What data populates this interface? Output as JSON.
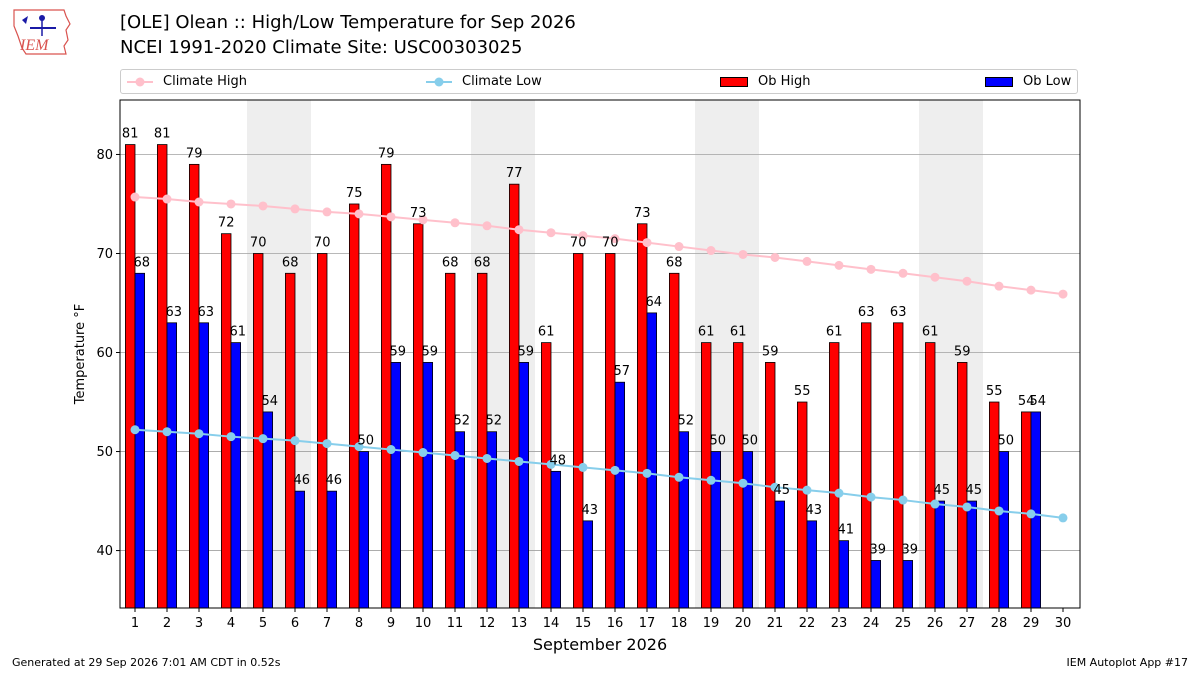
{
  "title_line1": "[OLE] Olean :: High/Low Temperature for Sep 2026",
  "title_line2": "NCEI 1991-2020 Climate Site: USC00303025",
  "logo_text": "IEM",
  "footer_left": "Generated at 29 Sep 2026 7:01 AM CDT in 0.52s",
  "footer_right": "IEM Autoplot App #17",
  "colors": {
    "ob_high": "#ff0000",
    "ob_low": "#0000ff",
    "climate_high": "#ffc0cb",
    "climate_low": "#87ceeb",
    "weekend_shade": "#eeeeee",
    "grid": "#a0a0a0"
  },
  "chart_data": {
    "type": "bar",
    "xlabel": "September 2026",
    "ylabel": "Temperature °F",
    "ylim": [
      34.2,
      85.5
    ],
    "yticks": [
      40,
      50,
      60,
      70,
      80
    ],
    "grid": "horizontal",
    "legend_position": "top",
    "categories": [
      "1",
      "2",
      "3",
      "4",
      "5",
      "6",
      "7",
      "8",
      "9",
      "10",
      "11",
      "12",
      "13",
      "14",
      "15",
      "16",
      "17",
      "18",
      "19",
      "20",
      "21",
      "22",
      "23",
      "24",
      "25",
      "26",
      "27",
      "28",
      "29",
      "30"
    ],
    "shaded_weekends": [
      [
        5,
        6
      ],
      [
        12,
        13
      ],
      [
        19,
        20
      ],
      [
        26,
        27
      ]
    ],
    "series": [
      {
        "name": "Climate High",
        "kind": "line",
        "values": [
          75.7,
          75.5,
          75.2,
          75.0,
          74.8,
          74.5,
          74.2,
          74.0,
          73.7,
          73.4,
          73.1,
          72.8,
          72.4,
          72.1,
          71.8,
          71.5,
          71.1,
          70.7,
          70.3,
          69.9,
          69.6,
          69.2,
          68.8,
          68.4,
          68.0,
          67.6,
          67.2,
          66.7,
          66.3,
          65.9
        ]
      },
      {
        "name": "Climate Low",
        "kind": "line",
        "values": [
          52.2,
          52.0,
          51.8,
          51.5,
          51.3,
          51.1,
          50.8,
          50.5,
          50.2,
          49.9,
          49.6,
          49.3,
          49.0,
          48.7,
          48.4,
          48.1,
          47.8,
          47.4,
          47.1,
          46.8,
          46.4,
          46.1,
          45.8,
          45.4,
          45.1,
          44.7,
          44.4,
          44.0,
          43.7,
          43.3
        ]
      },
      {
        "name": "Ob High",
        "kind": "bar",
        "values": [
          81,
          81,
          79,
          72,
          70,
          68,
          70,
          75,
          79,
          73,
          68,
          68,
          77,
          61,
          70,
          70,
          73,
          68,
          61,
          61,
          59,
          55,
          61,
          63,
          63,
          61,
          59,
          55,
          54,
          null
        ]
      },
      {
        "name": "Ob Low",
        "kind": "bar",
        "values": [
          68,
          63,
          63,
          61,
          54,
          46,
          46,
          50,
          59,
          59,
          52,
          52,
          59,
          48,
          43,
          57,
          64,
          52,
          50,
          50,
          45,
          43,
          41,
          39,
          39,
          45,
          45,
          50,
          54,
          null
        ]
      }
    ]
  }
}
